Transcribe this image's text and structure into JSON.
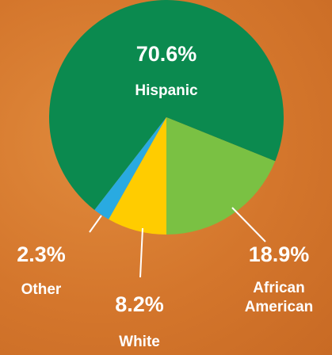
{
  "chart_data": {
    "type": "pie",
    "categories": [
      "Hispanic",
      "African American",
      "White",
      "Other"
    ],
    "values": [
      70.6,
      18.9,
      8.2,
      2.3
    ],
    "value_labels": [
      "70.6%",
      "18.9%",
      "8.2%",
      "2.3%"
    ],
    "colors": [
      "#0b8a4f",
      "#7ac143",
      "#ffcc00",
      "#29aae1"
    ]
  }
}
